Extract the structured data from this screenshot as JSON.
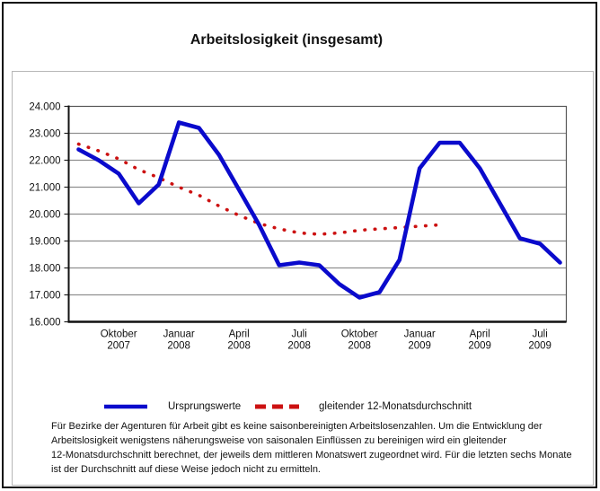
{
  "title": "Arbeitslosigkeit (insgesamt)",
  "legend": {
    "items": [
      {
        "label": "Ursprungswerte",
        "swatch": "solid-line",
        "color": "#0a0acc"
      },
      {
        "label": "gleitender 12-Monatsdurchschnitt",
        "swatch": "dashed-line",
        "color": "#cc1111"
      }
    ]
  },
  "footnote": {
    "lines": [
      "Für Bezirke der Agenturen für Arbeit gibt es keine saisonbereinigten Arbeitslosenzahlen. Um die Entwicklung der",
      "Arbeitslosigkeit wenigstens näherungsweise von saisonalen Einflüssen zu bereinigen wird ein gleitender",
      "12-Monatsdurchschnitt berechnet, der jeweils dem mittleren Monatswert zugeordnet wird. Für die letzten sechs Monate",
      "ist der Durchschnitt auf diese Weise jedoch nicht zu ermitteln."
    ]
  },
  "chart_data": {
    "type": "line",
    "title": "Arbeitslosigkeit (insgesamt)",
    "grid": "horizontal",
    "ylim": [
      16000,
      24000
    ],
    "x_months": [
      "Aug 2007",
      "Sep 2007",
      "Okt 2007",
      "Nov 2007",
      "Dez 2007",
      "Jan 2008",
      "Feb 2008",
      "Mär 2008",
      "Apr 2008",
      "Mai 2008",
      "Jun 2008",
      "Jul 2008",
      "Aug 2008",
      "Sep 2008",
      "Okt 2008",
      "Nov 2008",
      "Dez 2008",
      "Jan 2009",
      "Feb 2009",
      "Mär 2009",
      "Apr 2009",
      "Mai 2009",
      "Jun 2009",
      "Jul 2009",
      "Aug 2009"
    ],
    "y_ticks": [
      {
        "label": "24.000",
        "value": 24000
      },
      {
        "label": "23.000",
        "value": 23000
      },
      {
        "label": "22.000",
        "value": 22000
      },
      {
        "label": "21.000",
        "value": 21000
      },
      {
        "label": "20.000",
        "value": 20000
      },
      {
        "label": "19.000",
        "value": 19000
      },
      {
        "label": "18.000",
        "value": 18000
      },
      {
        "label": "17.000",
        "value": 17000
      },
      {
        "label": "16.000",
        "value": 16000
      }
    ],
    "x_ticks": [
      {
        "month": "Oktober",
        "year": "2007",
        "index": 2
      },
      {
        "month": "Januar",
        "year": "2008",
        "index": 5
      },
      {
        "month": "April",
        "year": "2008",
        "index": 8
      },
      {
        "month": "Juli",
        "year": "2008",
        "index": 11
      },
      {
        "month": "Oktober",
        "year": "2008",
        "index": 14
      },
      {
        "month": "Januar",
        "year": "2009",
        "index": 17
      },
      {
        "month": "April",
        "year": "2009",
        "index": 20
      },
      {
        "month": "Juli",
        "year": "2009",
        "index": 23
      }
    ],
    "series": [
      {
        "name": "gleitender 12-Monatsdurchschnitt",
        "style": "dotted",
        "color": "#cc1111",
        "values": [
          22600,
          22350,
          22050,
          21650,
          21350,
          21000,
          20700,
          20300,
          19950,
          19650,
          19450,
          19300,
          19250,
          19300,
          19400,
          19450,
          19500,
          19550,
          19600
        ]
      },
      {
        "name": "Ursprungswerte",
        "style": "solid",
        "color": "#0a0acc",
        "values": [
          22400,
          22000,
          21500,
          20400,
          21100,
          23400,
          23200,
          22200,
          20900,
          19600,
          18100,
          18200,
          18100,
          17400,
          16900,
          17100,
          18300,
          21700,
          22650,
          22650,
          21700,
          20400,
          19100,
          18900,
          18200
        ]
      }
    ]
  }
}
